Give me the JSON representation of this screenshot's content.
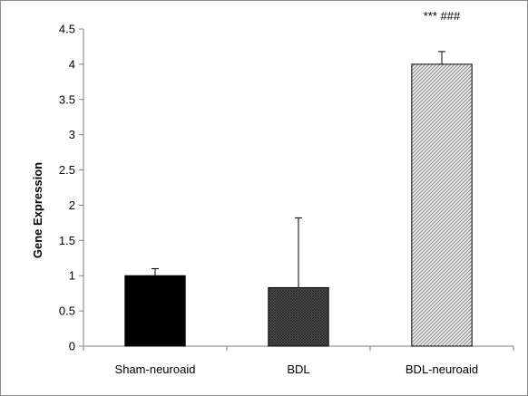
{
  "chart_data": {
    "type": "bar",
    "title": "",
    "xlabel": "",
    "ylabel": "Gene Expression",
    "ylim": [
      0,
      4.5
    ],
    "yticks": [
      "0",
      "0.5",
      "1",
      "1.5",
      "2",
      "2.5",
      "3",
      "3.5",
      "4",
      "4.5"
    ],
    "grid": false,
    "legend": "none",
    "categories": [
      "Sham-neuroaid",
      "BDL",
      "BDL-neuroaid"
    ],
    "values": [
      1.0,
      0.83,
      4.0
    ],
    "error_upper": [
      1.1,
      1.82,
      4.18
    ],
    "annotations": [
      {
        "category": "BDL-neuroaid",
        "text": "*** ###"
      }
    ],
    "colors": {
      "Sham-neuroaid": "#000000",
      "BDL": "#4a4a4a",
      "BDL-neuroaid": "#d9d9d9",
      "axis": "#7f7f7f",
      "frame": "#8c8c8c"
    },
    "patterns": {
      "Sham-neuroaid": "solid",
      "BDL": "dense-hatch",
      "BDL-neuroaid": "diagonal-hatch"
    }
  }
}
